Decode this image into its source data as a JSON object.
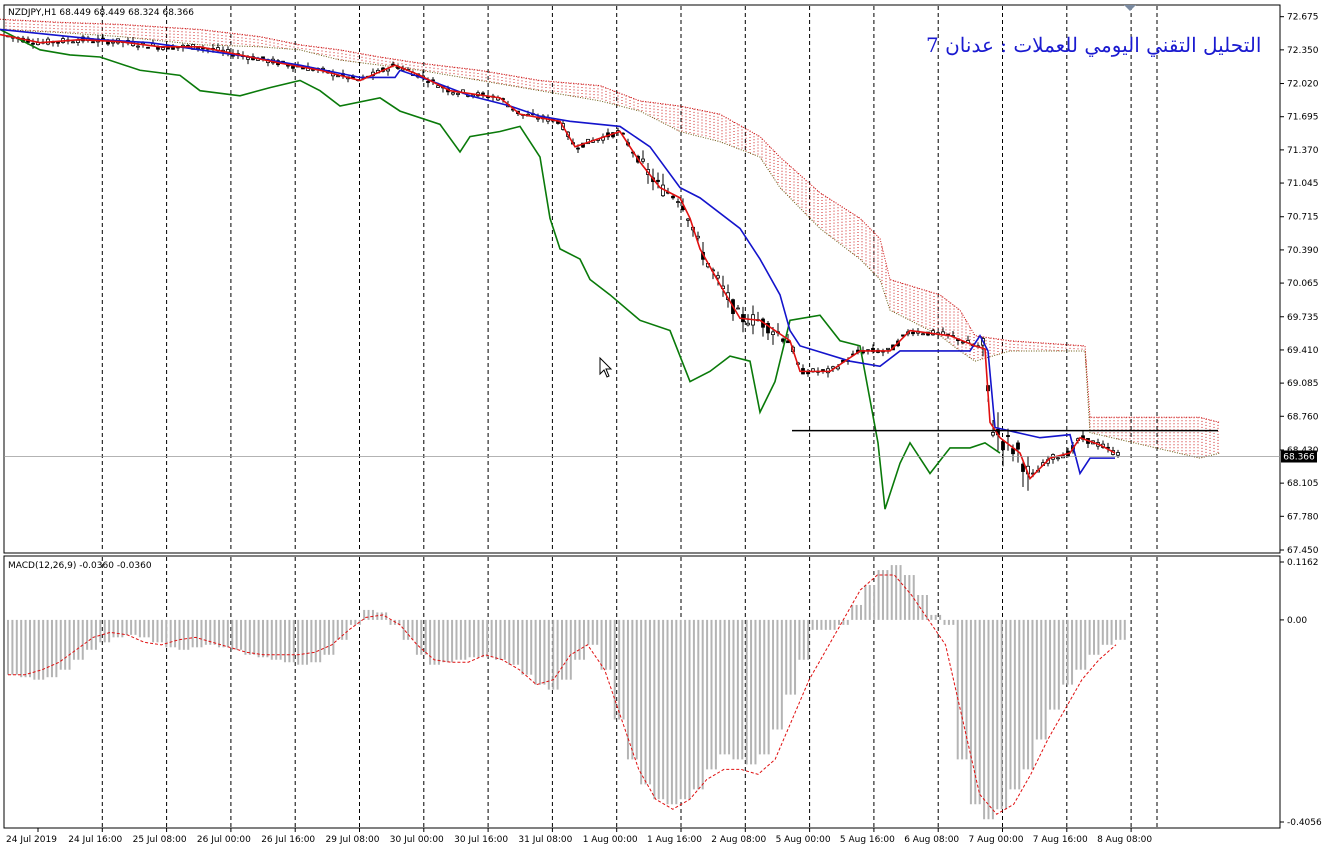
{
  "chart_data": [
    {
      "type": "candlestick",
      "header": "NZDJPY,H1  68.449 68.449 68.324 68.366",
      "title": "التحليل التقني اليومي للعملات : عدنان 7",
      "current_price": "68.366",
      "ylim": [
        67.45,
        72.76
      ],
      "y_ticks": [
        "72.675",
        "72.350",
        "72.020",
        "71.695",
        "71.370",
        "71.045",
        "70.715",
        "70.390",
        "70.065",
        "69.735",
        "69.410",
        "69.085",
        "68.760",
        "68.430",
        "68.105",
        "67.780",
        "67.450"
      ],
      "x_ticks": [
        "24 Jul 2019",
        "24 Jul 16:00",
        "25 Jul 08:00",
        "26 Jul 00:00",
        "26 Jul 16:00",
        "29 Jul 08:00",
        "30 Jul 00:00",
        "30 Jul 16:00",
        "31 Jul 08:00",
        "1 Aug 00:00",
        "1 Aug 16:00",
        "2 Aug 08:00",
        "5 Aug 00:00",
        "5 Aug 16:00",
        "6 Aug 08:00",
        "7 Aug 00:00",
        "7 Aug 16:00",
        "8 Aug 08:00"
      ],
      "horizontal_level": 68.62,
      "series": [
        {
          "role": "tenkan",
          "color": "#e01010",
          "points": [
            [
              0,
              72.5
            ],
            [
              40,
              72.42
            ],
            [
              80,
              72.45
            ],
            [
              120,
              72.43
            ],
            [
              160,
              72.38
            ],
            [
              200,
              72.38
            ],
            [
              240,
              72.3
            ],
            [
              280,
              72.22
            ],
            [
              320,
              72.15
            ],
            [
              360,
              72.05
            ],
            [
              395,
              72.2
            ],
            [
              420,
              72.1
            ],
            [
              450,
              71.95
            ],
            [
              500,
              71.88
            ],
            [
              520,
              71.72
            ],
            [
              560,
              71.65
            ],
            [
              575,
              71.4
            ],
            [
              620,
              71.55
            ],
            [
              640,
              71.25
            ],
            [
              660,
              71.0
            ],
            [
              680,
              70.9
            ],
            [
              690,
              70.7
            ],
            [
              700,
              70.4
            ],
            [
              720,
              70.05
            ],
            [
              740,
              69.72
            ],
            [
              760,
              69.7
            ],
            [
              790,
              69.5
            ],
            [
              800,
              69.2
            ],
            [
              830,
              69.2
            ],
            [
              860,
              69.4
            ],
            [
              890,
              69.4
            ],
            [
              900,
              69.5
            ],
            [
              910,
              69.6
            ],
            [
              950,
              69.55
            ],
            [
              975,
              69.45
            ],
            [
              985,
              69.42
            ],
            [
              990,
              68.7
            ],
            [
              1000,
              68.55
            ],
            [
              1020,
              68.4
            ],
            [
              1030,
              68.15
            ],
            [
              1040,
              68.25
            ],
            [
              1050,
              68.35
            ],
            [
              1070,
              68.4
            ],
            [
              1080,
              68.55
            ],
            [
              1100,
              68.48
            ],
            [
              1115,
              68.4
            ]
          ]
        },
        {
          "role": "kijun",
          "color": "#1414cc",
          "points": [
            [
              0,
              72.55
            ],
            [
              50,
              72.5
            ],
            [
              100,
              72.45
            ],
            [
              150,
              72.42
            ],
            [
              200,
              72.35
            ],
            [
              250,
              72.28
            ],
            [
              300,
              72.2
            ],
            [
              350,
              72.1
            ],
            [
              360,
              72.08
            ],
            [
              395,
              72.08
            ],
            [
              400,
              72.15
            ],
            [
              430,
              72.05
            ],
            [
              470,
              71.9
            ],
            [
              510,
              71.8
            ],
            [
              540,
              71.7
            ],
            [
              570,
              71.65
            ],
            [
              620,
              71.6
            ],
            [
              650,
              71.4
            ],
            [
              680,
              71.0
            ],
            [
              700,
              70.9
            ],
            [
              740,
              70.6
            ],
            [
              760,
              70.3
            ],
            [
              780,
              69.95
            ],
            [
              790,
              69.6
            ],
            [
              800,
              69.45
            ],
            [
              850,
              69.3
            ],
            [
              880,
              69.25
            ],
            [
              900,
              69.4
            ],
            [
              970,
              69.4
            ],
            [
              980,
              69.55
            ],
            [
              988,
              69.4
            ],
            [
              995,
              68.65
            ],
            [
              1040,
              68.55
            ],
            [
              1070,
              68.58
            ],
            [
              1080,
              68.2
            ],
            [
              1090,
              68.35
            ],
            [
              1115,
              68.35
            ]
          ]
        },
        {
          "role": "chikou",
          "color": "#0a7a0a",
          "points": [
            [
              0,
              72.55
            ],
            [
              40,
              72.35
            ],
            [
              70,
              72.3
            ],
            [
              100,
              72.28
            ],
            [
              140,
              72.15
            ],
            [
              180,
              72.1
            ],
            [
              200,
              71.95
            ],
            [
              240,
              71.9
            ],
            [
              270,
              71.98
            ],
            [
              300,
              72.05
            ],
            [
              320,
              71.95
            ],
            [
              340,
              71.8
            ],
            [
              380,
              71.88
            ],
            [
              400,
              71.75
            ],
            [
              440,
              71.62
            ],
            [
              460,
              71.35
            ],
            [
              470,
              71.5
            ],
            [
              500,
              71.55
            ],
            [
              520,
              71.6
            ],
            [
              540,
              71.3
            ],
            [
              550,
              70.7
            ],
            [
              560,
              70.4
            ],
            [
              580,
              70.3
            ],
            [
              590,
              70.1
            ],
            [
              610,
              69.95
            ],
            [
              640,
              69.7
            ],
            [
              670,
              69.6
            ],
            [
              690,
              69.1
            ],
            [
              710,
              69.2
            ],
            [
              730,
              69.35
            ],
            [
              750,
              69.3
            ],
            [
              760,
              68.8
            ],
            [
              775,
              69.1
            ],
            [
              790,
              69.7
            ],
            [
              820,
              69.75
            ],
            [
              840,
              69.5
            ],
            [
              860,
              69.45
            ],
            [
              878,
              68.5
            ],
            [
              885,
              67.85
            ],
            [
              900,
              68.3
            ],
            [
              910,
              68.5
            ],
            [
              930,
              68.2
            ],
            [
              950,
              68.45
            ],
            [
              970,
              68.45
            ],
            [
              985,
              68.5
            ],
            [
              1000,
              68.4
            ]
          ]
        },
        {
          "role": "senkou_a",
          "color": "#cc1010",
          "points": [
            [
              0,
              72.65
            ],
            [
              60,
              72.62
            ],
            [
              120,
              72.6
            ],
            [
              200,
              72.55
            ],
            [
              260,
              72.48
            ],
            [
              300,
              72.4
            ],
            [
              340,
              72.35
            ],
            [
              380,
              72.28
            ],
            [
              420,
              72.22
            ],
            [
              480,
              72.15
            ],
            [
              540,
              72.05
            ],
            [
              600,
              72.0
            ],
            [
              640,
              71.85
            ],
            [
              680,
              71.8
            ],
            [
              720,
              71.72
            ],
            [
              760,
              71.5
            ],
            [
              780,
              71.3
            ],
            [
              820,
              70.95
            ],
            [
              860,
              70.7
            ],
            [
              880,
              70.5
            ],
            [
              890,
              70.1
            ],
            [
              940,
              69.95
            ],
            [
              960,
              69.8
            ],
            [
              975,
              69.55
            ],
            [
              1010,
              69.5
            ],
            [
              1040,
              69.48
            ],
            [
              1085,
              69.45
            ],
            [
              1090,
              68.75
            ],
            [
              1200,
              68.75
            ],
            [
              1220,
              68.7
            ]
          ]
        },
        {
          "role": "senkou_b",
          "color": "#6a5a10",
          "points": [
            [
              0,
              72.55
            ],
            [
              60,
              72.52
            ],
            [
              120,
              72.48
            ],
            [
              200,
              72.4
            ],
            [
              260,
              72.38
            ],
            [
              300,
              72.35
            ],
            [
              340,
              72.25
            ],
            [
              380,
              72.2
            ],
            [
              420,
              72.15
            ],
            [
              480,
              72.05
            ],
            [
              540,
              71.95
            ],
            [
              600,
              71.85
            ],
            [
              640,
              71.75
            ],
            [
              680,
              71.55
            ],
            [
              720,
              71.45
            ],
            [
              760,
              71.3
            ],
            [
              780,
              71.0
            ],
            [
              820,
              70.6
            ],
            [
              860,
              70.3
            ],
            [
              880,
              70.1
            ],
            [
              890,
              69.8
            ],
            [
              940,
              69.55
            ],
            [
              960,
              69.4
            ],
            [
              975,
              69.3
            ],
            [
              1010,
              69.4
            ],
            [
              1040,
              69.4
            ],
            [
              1085,
              69.4
            ],
            [
              1090,
              68.6
            ],
            [
              1200,
              68.35
            ],
            [
              1220,
              68.4
            ]
          ]
        }
      ]
    },
    {
      "type": "bar",
      "header": "MACD(12,26,9) -0.0360 -0.0360",
      "ylim": [
        -0.4056,
        0.1162
      ],
      "y_ticks": [
        "0.1162",
        "0.00",
        "-0.4056"
      ],
      "histogram": [
        -0.11,
        -0.115,
        -0.12,
        -0.115,
        -0.1,
        -0.08,
        -0.06,
        -0.045,
        -0.035,
        -0.03,
        -0.035,
        -0.045,
        -0.055,
        -0.06,
        -0.055,
        -0.05,
        -0.055,
        -0.06,
        -0.07,
        -0.075,
        -0.08,
        -0.085,
        -0.09,
        -0.085,
        -0.07,
        -0.04,
        -0.01,
        0.02,
        0.015,
        -0.01,
        -0.04,
        -0.07,
        -0.09,
        -0.085,
        -0.08,
        -0.075,
        -0.075,
        -0.08,
        -0.09,
        -0.11,
        -0.13,
        -0.14,
        -0.12,
        -0.08,
        -0.05,
        -0.1,
        -0.2,
        -0.28,
        -0.33,
        -0.36,
        -0.37,
        -0.36,
        -0.34,
        -0.3,
        -0.27,
        -0.28,
        -0.29,
        -0.27,
        -0.22,
        -0.15,
        -0.08,
        -0.02,
        -0.02,
        -0.01,
        0.03,
        0.07,
        0.1,
        0.11,
        0.09,
        0.05,
        0.01,
        -0.01,
        -0.28,
        -0.37,
        -0.4,
        -0.38,
        -0.34,
        -0.3,
        -0.24,
        -0.18,
        -0.13,
        -0.1,
        -0.07,
        -0.05,
        -0.04
      ],
      "signal": [
        -0.11,
        -0.11,
        -0.1,
        -0.085,
        -0.06,
        -0.035,
        -0.025,
        -0.03,
        -0.045,
        -0.05,
        -0.04,
        -0.035,
        -0.045,
        -0.055,
        -0.065,
        -0.07,
        -0.07,
        -0.07,
        -0.065,
        -0.05,
        -0.02,
        0.005,
        0.01,
        -0.01,
        -0.05,
        -0.08,
        -0.085,
        -0.085,
        -0.07,
        -0.08,
        -0.1,
        -0.13,
        -0.12,
        -0.07,
        -0.05,
        -0.1,
        -0.2,
        -0.3,
        -0.36,
        -0.38,
        -0.36,
        -0.32,
        -0.3,
        -0.3,
        -0.31,
        -0.28,
        -0.2,
        -0.12,
        -0.06,
        0.0,
        0.06,
        0.09,
        0.09,
        0.05,
        0.0,
        -0.05,
        -0.2,
        -0.35,
        -0.39,
        -0.37,
        -0.31,
        -0.24,
        -0.18,
        -0.12,
        -0.08,
        -0.05
      ]
    }
  ]
}
